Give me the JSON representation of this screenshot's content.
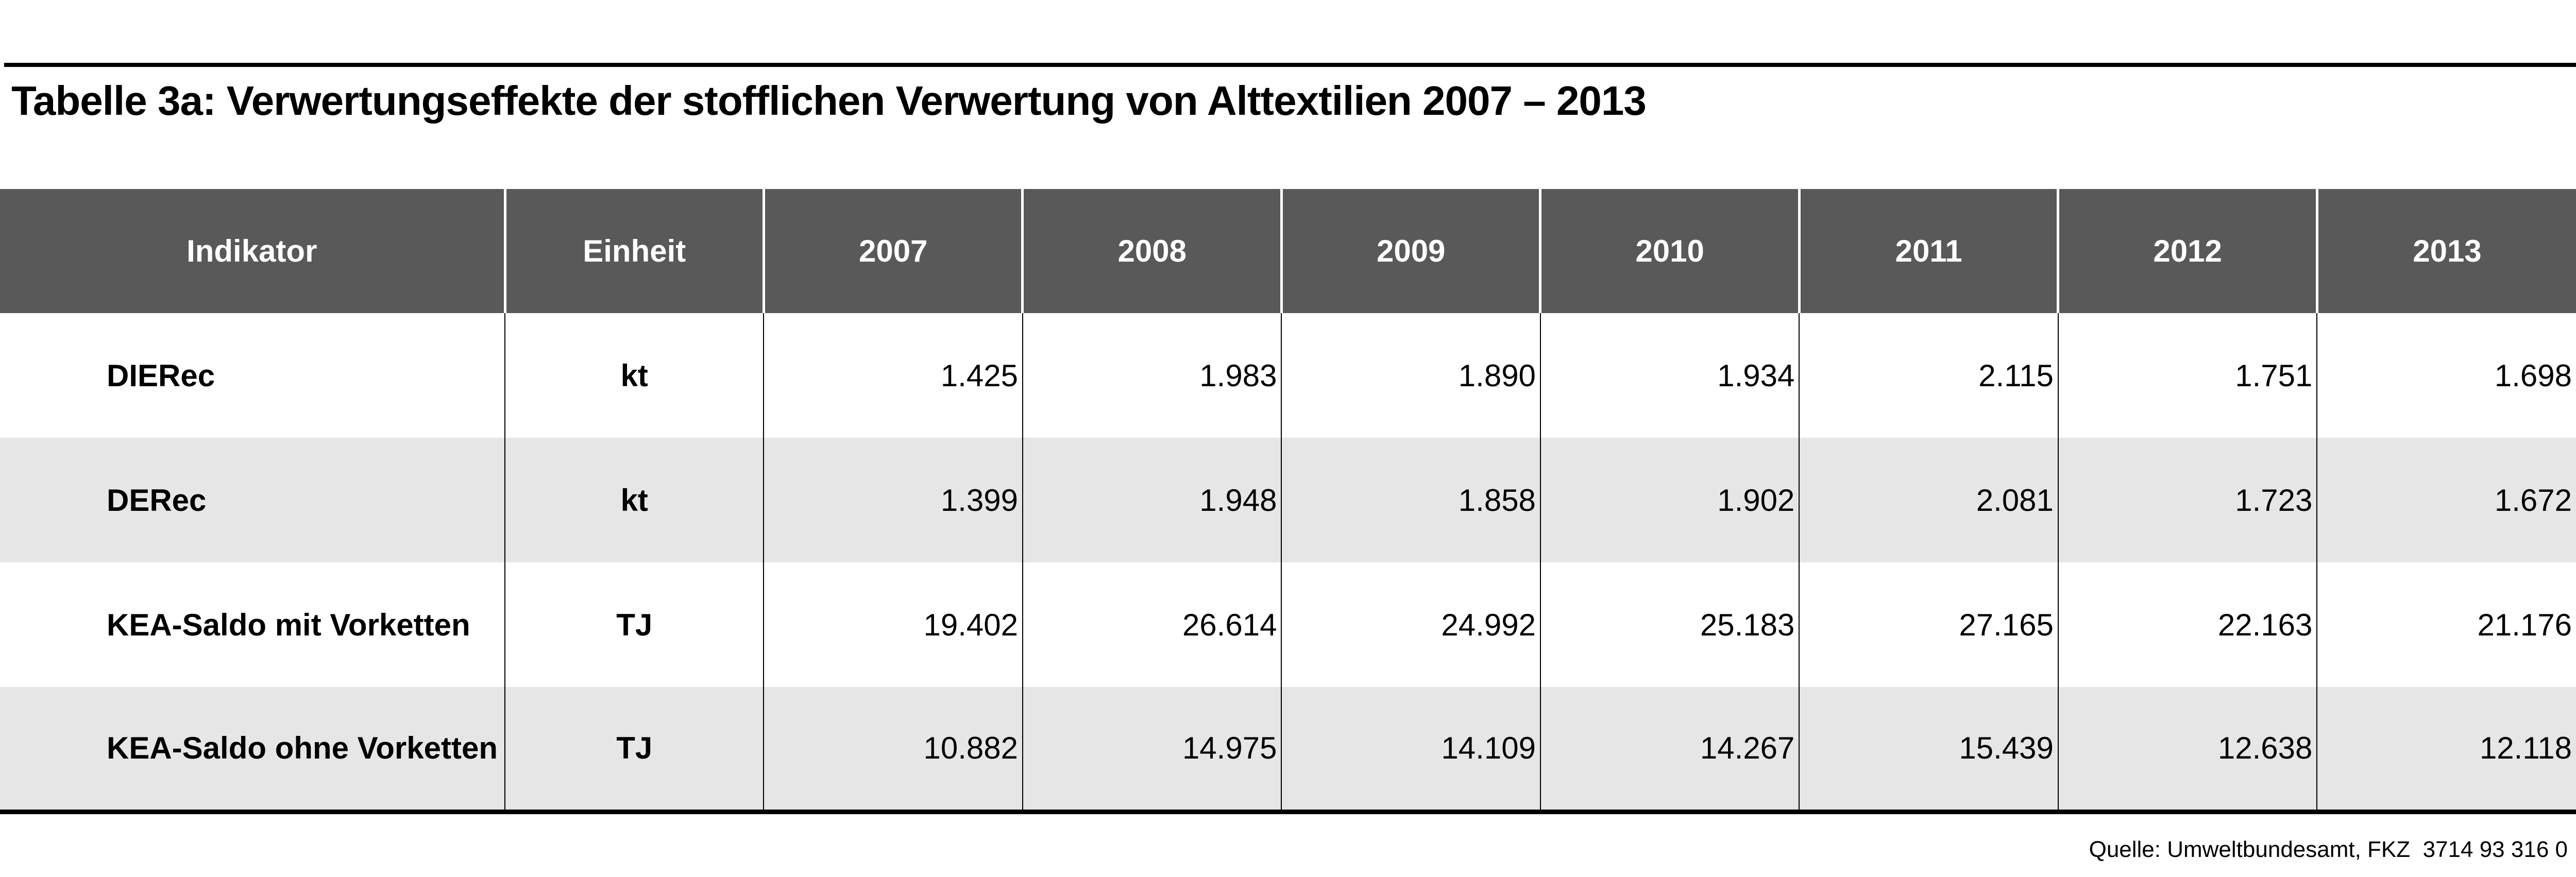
{
  "title": "Tabelle 3a: Verwertungseffekte der stofflichen Verwertung von Alttextilien 2007 – 2013",
  "table": {
    "headers": [
      "Indikator",
      "Einheit",
      "2007",
      "2008",
      "2009",
      "2010",
      "2011",
      "2012",
      "2013"
    ],
    "rows": [
      {
        "indicator": "DIERec",
        "unit": "kt",
        "values": [
          "1.425",
          "1.983",
          "1.890",
          "1.934",
          "2.115",
          "1.751",
          "1.698"
        ]
      },
      {
        "indicator": "DERec",
        "unit": "kt",
        "values": [
          "1.399",
          "1.948",
          "1.858",
          "1.902",
          "2.081",
          "1.723",
          "1.672"
        ]
      },
      {
        "indicator": "KEA-Saldo mit Vorketten",
        "unit": "TJ",
        "values": [
          "19.402",
          "26.614",
          "24.992",
          "25.183",
          "27.165",
          "22.163",
          "21.176"
        ]
      },
      {
        "indicator": "KEA-Saldo ohne Vorketten",
        "unit": "TJ",
        "values": [
          "10.882",
          "14.975",
          "14.109",
          "14.267",
          "15.439",
          "12.638",
          "12.118"
        ]
      }
    ]
  },
  "source": "Quelle: Umweltbundesamt, FKZ  3714 93 316 0",
  "colors": {
    "header_bg": "#595959",
    "alt_row_bg": "#e6e6e6"
  }
}
